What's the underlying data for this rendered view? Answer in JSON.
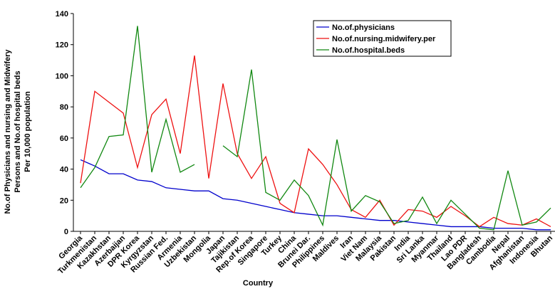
{
  "chart_data": {
    "type": "line",
    "y_label": [
      "No.of Physicians and nursing and Midwifery",
      "Persons and No.of hospital beds",
      "Per 10,000 population"
    ],
    "x_label": "Country",
    "categories": [
      "Georgia",
      "Turkmenistan",
      "Kazakhstan",
      "Azerbaijan",
      "DPR Korea",
      "Kyrgyzstan",
      "Russian Fed.",
      "Armenia",
      "Uzbekistan",
      "Mongolia",
      "Japan",
      "Tajikistan",
      "Rep.of Korea",
      "Singapore",
      "Turkey",
      "China",
      "Brunei Dar.",
      "Philippines",
      "Maldives",
      "Iran",
      "Viet Nam",
      "Malaysia",
      "Pakistan",
      "India",
      "Sri Lanka",
      "Myanmar",
      "Thailand",
      "Lao PDR",
      "Bangladesh",
      "Cambodia",
      "Nepal",
      "Afghanistan",
      "Indonesia",
      "Bhutan"
    ],
    "series": [
      {
        "name": "No.of.physicians",
        "color": "#0000cc",
        "values": [
          46,
          42,
          37,
          37,
          33,
          32,
          28,
          27,
          26,
          26,
          21,
          20,
          18,
          16,
          14,
          12,
          11,
          10,
          10,
          9,
          8,
          7,
          7,
          6,
          5,
          4,
          3,
          3,
          3,
          2,
          2,
          2,
          1,
          1
        ]
      },
      {
        "name": "No.of.nursing.midwifery.per",
        "color": "#ee1111",
        "values": [
          31,
          90,
          83,
          76,
          41,
          75,
          85,
          50,
          113,
          34,
          95,
          50,
          34,
          48,
          18,
          12,
          53,
          43,
          30,
          14,
          9,
          20,
          4,
          14,
          13,
          9,
          16,
          10,
          3,
          9,
          5,
          4,
          8,
          3
        ]
      },
      {
        "name": "No.of.hospital.beds",
        "color": "#118811",
        "values": [
          28,
          41,
          61,
          62,
          132,
          38,
          72,
          38,
          43,
          null,
          55,
          48,
          104,
          25,
          20,
          33,
          23,
          4,
          59,
          13,
          23,
          19,
          5,
          7,
          22,
          5,
          20,
          11,
          2,
          1,
          39,
          4,
          6,
          15
        ]
      }
    ],
    "ylim": [
      0,
      140
    ],
    "yticks": [
      0,
      20,
      40,
      60,
      80,
      100,
      120,
      140
    ],
    "grid": false,
    "legend": "upper right"
  }
}
